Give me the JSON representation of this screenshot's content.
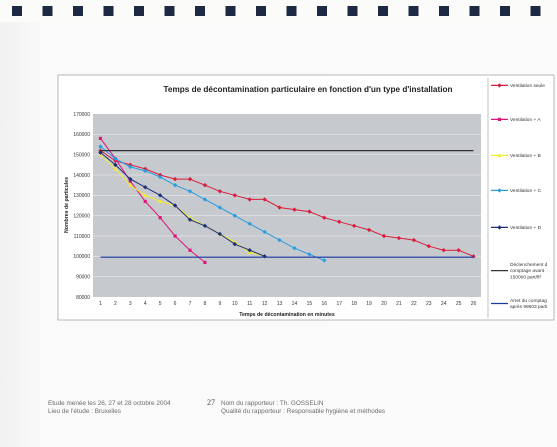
{
  "colors": {
    "plot_background": "#c6c9ce",
    "binding": "#1e2a44",
    "threshold_upper": "#333333",
    "threshold_lower": "#1c3a9c"
  },
  "chart_data": {
    "type": "line",
    "title": "Temps de décontamination particulaire en fonction d'un type d'installation",
    "xlabel": "Temps de décontamination en minutes",
    "ylabel": "Nombres de particules",
    "x_ticks": [
      1,
      2,
      3,
      4,
      5,
      6,
      7,
      8,
      9,
      10,
      11,
      12,
      13,
      14,
      15,
      16,
      17,
      18,
      19,
      20,
      21,
      22,
      23,
      24,
      25,
      26
    ],
    "y_ticks": [
      "80000",
      "90000",
      "100000",
      "110000",
      "120000",
      "130000",
      "140000",
      "150000",
      "160000",
      "170000"
    ],
    "xlim": [
      0.5,
      26.5
    ],
    "ylim": [
      80000,
      170000
    ],
    "grid": "horizontal",
    "legend_position": "right",
    "series": [
      {
        "name": "Ventilation seule",
        "color": "#d81e3c",
        "marker": "diamond",
        "x": [
          1,
          2,
          3,
          4,
          5,
          6,
          7,
          8,
          9,
          10,
          11,
          12,
          13,
          14,
          15,
          16,
          17,
          18,
          19,
          20,
          21,
          22,
          23,
          24,
          25,
          26
        ],
        "values": [
          152000,
          147000,
          145000,
          143000,
          140000,
          138000,
          138000,
          135000,
          132000,
          130000,
          128000,
          128000,
          124000,
          123000,
          122000,
          119000,
          117000,
          115000,
          113000,
          110000,
          109000,
          108000,
          105000,
          103000,
          103000,
          100000
        ]
      },
      {
        "name": "Ventilation + A",
        "color": "#e0157a",
        "marker": "square",
        "x": [
          1,
          2,
          3,
          4,
          5,
          6,
          7,
          8
        ],
        "values": [
          158000,
          148000,
          137000,
          127000,
          119000,
          110000,
          103000,
          97000
        ]
      },
      {
        "name": "Ventilation + B",
        "color": "#f2ef2a",
        "marker": "triangle",
        "x": [
          1,
          2,
          3,
          4,
          5,
          6,
          7,
          8,
          9,
          10,
          11,
          12
        ],
        "values": [
          150000,
          143000,
          135000,
          130000,
          127000,
          125000,
          119000,
          115000,
          111000,
          107000,
          102000,
          100000
        ]
      },
      {
        "name": "Ventilation + C",
        "color": "#2a9de0",
        "marker": "diamond",
        "x": [
          1,
          2,
          3,
          4,
          5,
          6,
          7,
          8,
          9,
          10,
          11,
          12,
          13,
          14,
          15,
          16
        ],
        "values": [
          154000,
          148000,
          144000,
          142000,
          139000,
          135000,
          132000,
          128000,
          124000,
          120000,
          116000,
          112000,
          108000,
          104000,
          101000,
          98000
        ]
      },
      {
        "name": "Ventilation + D",
        "color": "#1f2f7a",
        "marker": "diamond",
        "x": [
          1,
          2,
          3,
          4,
          5,
          6,
          7,
          8,
          9,
          10,
          11,
          12
        ],
        "values": [
          151000,
          145000,
          138000,
          134000,
          130000,
          125000,
          118000,
          115000,
          111000,
          106000,
          103000,
          100000
        ]
      },
      {
        "name": "Déclenchement du comptage avant 150000 part/ft³",
        "color": "#333333",
        "marker": "none",
        "x": [
          1,
          26
        ],
        "values": [
          152000,
          152000
        ]
      },
      {
        "name": "Arret du comptage après 99603 particules",
        "color": "#1c3a9c",
        "marker": "none",
        "x": [
          1,
          26
        ],
        "values": [
          99603,
          99603
        ]
      }
    ]
  },
  "legend": [
    {
      "lines": [
        "Ventilation seule"
      ]
    },
    {
      "lines": [
        "Ventilation + A"
      ]
    },
    {
      "lines": [
        "Ventilation + B"
      ]
    },
    {
      "lines": [
        "Ventilation + C"
      ]
    },
    {
      "lines": [
        "Ventilation + D"
      ]
    },
    {
      "lines": [
        "Déclenchement d",
        "comptage avant",
        "150000 part/ft³"
      ]
    },
    {
      "lines": [
        "Arret du comptag",
        "après 99603 parti"
      ]
    }
  ],
  "footer": {
    "left_line1": "Etude menée les 26, 27 et 28 octobre 2004",
    "left_line2": "Lieu de l'étude : Bruxelles",
    "page_number": "27",
    "right_line1": "Nom du rapporteur : Th. GOSSELIN",
    "right_line2": "Qualité du rapporteur : Responsable hygiène et méthodes"
  }
}
